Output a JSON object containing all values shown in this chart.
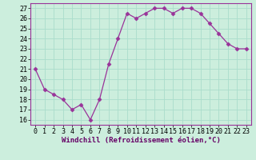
{
  "x": [
    0,
    1,
    2,
    3,
    4,
    5,
    6,
    7,
    8,
    9,
    10,
    11,
    12,
    13,
    14,
    15,
    16,
    17,
    18,
    19,
    20,
    21,
    22,
    23
  ],
  "y": [
    21,
    19,
    18.5,
    18,
    17,
    17.5,
    16,
    18,
    21.5,
    24,
    26.5,
    26,
    26.5,
    27,
    27,
    26.5,
    27,
    27,
    26.5,
    25.5,
    24.5,
    23.5,
    23,
    23
  ],
  "line_color": "#993399",
  "marker": "D",
  "marker_size": 2.5,
  "bg_color": "#cceedd",
  "grid_color": "#aaddcc",
  "xlabel": "Windchill (Refroidissement éolien,°C)",
  "xlabel_fontsize": 6.5,
  "ylabel_vals": [
    16,
    17,
    18,
    19,
    20,
    21,
    22,
    23,
    24,
    25,
    26,
    27
  ],
  "xlim": [
    -0.5,
    23.5
  ],
  "ylim": [
    15.5,
    27.5
  ],
  "tick_fontsize": 6,
  "xtick_labels": [
    "0",
    "1",
    "2",
    "3",
    "4",
    "5",
    "6",
    "7",
    "8",
    "9",
    "10",
    "11",
    "12",
    "13",
    "14",
    "15",
    "16",
    "17",
    "18",
    "19",
    "20",
    "21",
    "22",
    "23"
  ]
}
